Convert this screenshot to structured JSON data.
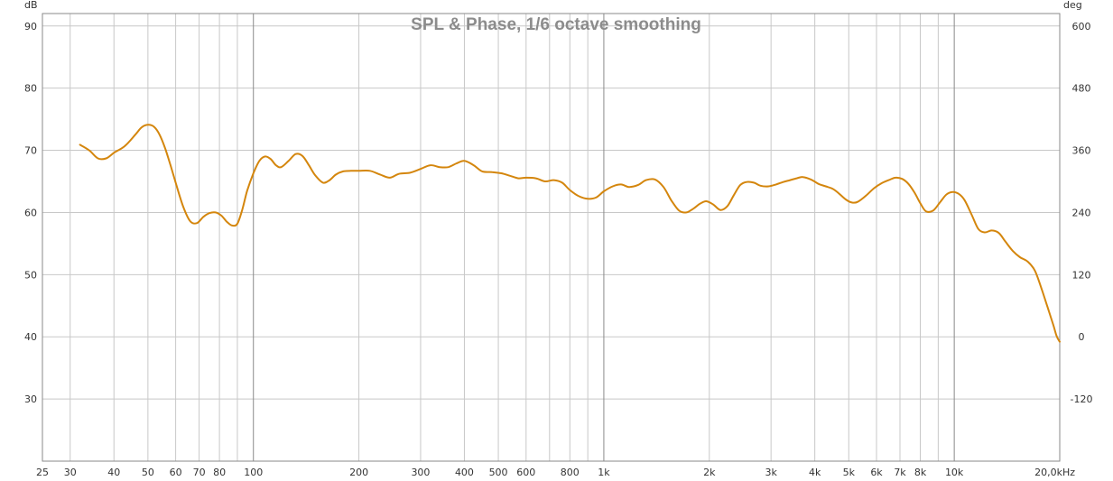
{
  "chart_data": {
    "type": "line",
    "title": "SPL & Phase, 1/6 octave smoothing",
    "y_unit_left": "dB",
    "y_unit_right": "deg",
    "x_scale": "log",
    "xlim": [
      25,
      20000
    ],
    "ylim": [
      20,
      92
    ],
    "y2lim": [
      -240,
      624
    ],
    "grid": true,
    "x_major_lines": [
      100,
      1000,
      10000
    ],
    "x_minor_lines": [
      30,
      40,
      50,
      60,
      70,
      80,
      90,
      200,
      300,
      400,
      500,
      600,
      700,
      800,
      900,
      2000,
      3000,
      4000,
      5000,
      6000,
      7000,
      8000,
      9000
    ],
    "x_ticks": [
      {
        "value": 25,
        "label": "25"
      },
      {
        "value": 30,
        "label": "30"
      },
      {
        "value": 40,
        "label": "40"
      },
      {
        "value": 50,
        "label": "50"
      },
      {
        "value": 60,
        "label": "60"
      },
      {
        "value": 70,
        "label": "70"
      },
      {
        "value": 80,
        "label": "80"
      },
      {
        "value": 100,
        "label": "100"
      },
      {
        "value": 200,
        "label": "200"
      },
      {
        "value": 300,
        "label": "300"
      },
      {
        "value": 400,
        "label": "400"
      },
      {
        "value": 500,
        "label": "500"
      },
      {
        "value": 600,
        "label": "600"
      },
      {
        "value": 800,
        "label": "800"
      },
      {
        "value": 1000,
        "label": "1k"
      },
      {
        "value": 2000,
        "label": "2k"
      },
      {
        "value": 3000,
        "label": "3k"
      },
      {
        "value": 4000,
        "label": "4k"
      },
      {
        "value": 5000,
        "label": "5k"
      },
      {
        "value": 6000,
        "label": "6k"
      },
      {
        "value": 7000,
        "label": "7k"
      },
      {
        "value": 8000,
        "label": "8k"
      },
      {
        "value": 10000,
        "label": "10k"
      },
      {
        "value": 20000,
        "label": "20,0kHz"
      }
    ],
    "y_ticks": [
      {
        "value": 30,
        "label": "30"
      },
      {
        "value": 40,
        "label": "40"
      },
      {
        "value": 50,
        "label": "50"
      },
      {
        "value": 60,
        "label": "60"
      },
      {
        "value": 70,
        "label": "70"
      },
      {
        "value": 80,
        "label": "80"
      },
      {
        "value": 90,
        "label": "90"
      }
    ],
    "y2_ticks": [
      {
        "value": -120,
        "label": "-120"
      },
      {
        "value": 0,
        "label": "0"
      },
      {
        "value": 120,
        "label": "120"
      },
      {
        "value": 240,
        "label": "240"
      },
      {
        "value": 360,
        "label": "360"
      },
      {
        "value": 480,
        "label": "480"
      },
      {
        "value": 600,
        "label": "600"
      }
    ],
    "series": [
      {
        "color": "#d4860d",
        "x": [
          32,
          34,
          36,
          38,
          40,
          43,
          46,
          48,
          50,
          52,
          54,
          56,
          58,
          60,
          63,
          66,
          69,
          72,
          75,
          78,
          81,
          84,
          87,
          90,
          93,
          96,
          100,
          104,
          108,
          112,
          116,
          120,
          126,
          132,
          138,
          144,
          150,
          158,
          165,
          172,
          180,
          190,
          200,
          215,
          230,
          245,
          260,
          280,
          300,
          320,
          340,
          360,
          380,
          400,
          425,
          450,
          480,
          510,
          540,
          570,
          600,
          640,
          680,
          720,
          760,
          800,
          850,
          900,
          950,
          1000,
          1060,
          1120,
          1180,
          1250,
          1320,
          1400,
          1480,
          1560,
          1640,
          1720,
          1800,
          1880,
          1960,
          2050,
          2150,
          2250,
          2350,
          2450,
          2550,
          2680,
          2800,
          2950,
          3100,
          3250,
          3400,
          3550,
          3700,
          3900,
          4100,
          4300,
          4500,
          4700,
          4900,
          5100,
          5300,
          5600,
          5900,
          6200,
          6500,
          6800,
          7100,
          7400,
          7700,
          8000,
          8300,
          8700,
          9100,
          9500,
          9900,
          10300,
          10700,
          11200,
          11700,
          12200,
          12800,
          13400,
          14000,
          14700,
          15400,
          16200,
          17000,
          17800,
          18500,
          19200,
          19600,
          20000
        ],
        "values": [
          70.9,
          70.0,
          68.7,
          68.7,
          69.6,
          70.7,
          72.5,
          73.7,
          74.1,
          73.8,
          72.5,
          70.3,
          67.6,
          64.8,
          61.0,
          58.6,
          58.3,
          59.3,
          59.9,
          60.0,
          59.5,
          58.5,
          57.9,
          58.2,
          60.5,
          63.5,
          66.3,
          68.3,
          69.0,
          68.6,
          67.6,
          67.3,
          68.3,
          69.4,
          69.1,
          67.6,
          66.0,
          64.8,
          65.2,
          66.1,
          66.6,
          66.7,
          66.7,
          66.7,
          66.1,
          65.6,
          66.2,
          66.4,
          67.0,
          67.6,
          67.3,
          67.3,
          67.9,
          68.3,
          67.6,
          66.6,
          66.5,
          66.3,
          65.9,
          65.5,
          65.6,
          65.5,
          65.0,
          65.2,
          64.8,
          63.6,
          62.6,
          62.2,
          62.4,
          63.4,
          64.2,
          64.5,
          64.1,
          64.4,
          65.2,
          65.3,
          64.1,
          61.9,
          60.3,
          60.0,
          60.6,
          61.4,
          61.8,
          61.3,
          60.4,
          61.0,
          62.8,
          64.4,
          64.9,
          64.8,
          64.3,
          64.2,
          64.5,
          64.9,
          65.2,
          65.5,
          65.7,
          65.3,
          64.6,
          64.2,
          63.8,
          63.0,
          62.1,
          61.6,
          61.7,
          62.7,
          63.9,
          64.7,
          65.2,
          65.6,
          65.4,
          64.6,
          63.2,
          61.5,
          60.2,
          60.3,
          61.6,
          62.9,
          63.3,
          63.0,
          62.0,
          59.7,
          57.4,
          56.8,
          57.1,
          56.7,
          55.3,
          53.8,
          52.8,
          52.1,
          50.6,
          47.5,
          44.6,
          41.8,
          40.1,
          39.2
        ]
      }
    ]
  }
}
